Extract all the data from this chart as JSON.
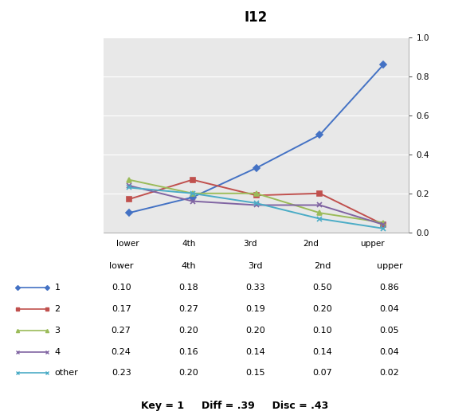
{
  "title": "I12",
  "x_labels": [
    "lower",
    "4th",
    "3rd",
    "2nd",
    "upper"
  ],
  "series_keys": [
    "1",
    "2",
    "3",
    "4",
    "other"
  ],
  "series": {
    "1": [
      0.1,
      0.18,
      0.33,
      0.5,
      0.86
    ],
    "2": [
      0.17,
      0.27,
      0.19,
      0.2,
      0.04
    ],
    "3": [
      0.27,
      0.2,
      0.2,
      0.1,
      0.05
    ],
    "4": [
      0.24,
      0.16,
      0.14,
      0.14,
      0.04
    ],
    "other": [
      0.23,
      0.2,
      0.15,
      0.07,
      0.02
    ]
  },
  "colors": {
    "1": "#4472C4",
    "2": "#C0504D",
    "3": "#9BBB59",
    "4": "#8064A2",
    "other": "#4BACC6"
  },
  "markers": {
    "1": "D",
    "2": "s",
    "3": "^",
    "4": "x",
    "other": "x"
  },
  "ylim": [
    0.0,
    1.0
  ],
  "yticks": [
    0.0,
    0.2,
    0.4,
    0.6,
    0.8,
    1.0
  ],
  "footer": "Key = 1     Diff = .39     Disc = .43",
  "plot_bg": "#E8E8E8",
  "fig_bg": "#FFFFFF",
  "page_bg": "#D4D0C8",
  "title_fontsize": 12,
  "axis_fontsize": 7.5,
  "table_fontsize": 8,
  "footer_fontsize": 9
}
